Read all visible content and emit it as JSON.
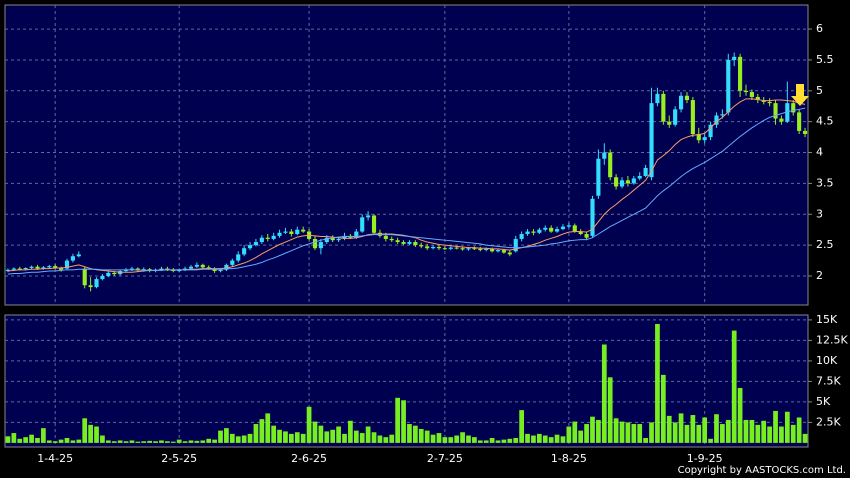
{
  "chart_data": [
    {
      "type": "candlestick",
      "up_color": "#33ddff",
      "down_color": "#99ee22",
      "grid": true,
      "ylim": [
        1.53,
        6.39
      ],
      "yticks": [
        2,
        2.5,
        3,
        3.5,
        4,
        4.5,
        5,
        5.5,
        6
      ],
      "open": [
        2.08,
        2.1,
        2.12,
        2.11,
        2.13,
        2.15,
        2.12,
        2.14,
        2.16,
        2.13,
        2.12,
        2.25,
        2.32,
        2.12,
        1.85,
        1.82,
        1.95,
        2.0,
        2.05,
        2.03,
        2.08,
        2.1,
        2.12,
        2.09,
        2.11,
        2.08,
        2.1,
        2.12,
        2.1,
        2.08,
        2.1,
        2.12,
        2.15,
        2.18,
        2.14,
        2.12,
        2.08,
        2.1,
        2.18,
        2.25,
        2.35,
        2.45,
        2.5,
        2.55,
        2.62,
        2.6,
        2.65,
        2.7,
        2.72,
        2.68,
        2.75,
        2.72,
        2.6,
        2.45,
        2.55,
        2.62,
        2.58,
        2.6,
        2.65,
        2.62,
        2.72,
        2.95,
        2.98,
        2.7,
        2.65,
        2.6,
        2.58,
        2.55,
        2.52,
        2.55,
        2.5,
        2.48,
        2.45,
        2.47,
        2.45,
        2.44,
        2.46,
        2.45,
        2.43,
        2.45,
        2.44,
        2.42,
        2.44,
        2.4,
        2.42,
        2.38,
        2.4,
        2.6,
        2.68,
        2.72,
        2.7,
        2.75,
        2.78,
        2.72,
        2.76,
        2.8,
        2.82,
        2.72,
        2.68,
        2.65,
        3.3,
        3.9,
        4.0,
        3.6,
        3.45,
        3.55,
        3.5,
        3.58,
        3.62,
        3.6,
        4.8,
        4.95,
        4.5,
        4.45,
        4.7,
        4.92,
        4.85,
        4.3,
        4.2,
        4.25,
        4.45,
        4.6,
        4.65,
        5.5,
        5.55,
        5.0,
        4.98,
        4.9,
        4.85,
        4.82,
        4.8,
        4.55,
        4.5,
        4.8,
        4.65,
        4.35
      ],
      "high": [
        2.12,
        2.14,
        2.15,
        2.14,
        2.17,
        2.18,
        2.16,
        2.18,
        2.19,
        2.15,
        2.28,
        2.36,
        2.4,
        2.14,
        1.98,
        1.98,
        2.03,
        2.08,
        2.08,
        2.1,
        2.13,
        2.15,
        2.14,
        2.14,
        2.13,
        2.12,
        2.15,
        2.15,
        2.13,
        2.12,
        2.15,
        2.18,
        2.22,
        2.2,
        2.17,
        2.14,
        2.12,
        2.2,
        2.28,
        2.4,
        2.5,
        2.55,
        2.6,
        2.66,
        2.68,
        2.7,
        2.75,
        2.78,
        2.76,
        2.8,
        2.8,
        2.76,
        2.65,
        2.6,
        2.66,
        2.66,
        2.64,
        2.7,
        2.68,
        2.76,
        3.0,
        3.05,
        3.0,
        2.75,
        2.7,
        2.64,
        2.62,
        2.58,
        2.58,
        2.58,
        2.54,
        2.52,
        2.5,
        2.5,
        2.48,
        2.48,
        2.49,
        2.48,
        2.47,
        2.48,
        2.47,
        2.46,
        2.46,
        2.44,
        2.44,
        2.42,
        2.65,
        2.72,
        2.76,
        2.76,
        2.78,
        2.82,
        2.82,
        2.8,
        2.84,
        2.86,
        2.85,
        2.76,
        2.72,
        3.3,
        4.05,
        4.15,
        4.05,
        3.65,
        3.6,
        3.62,
        3.62,
        3.68,
        3.8,
        5.05,
        5.05,
        5.0,
        4.6,
        4.75,
        4.98,
        4.98,
        4.9,
        4.4,
        4.3,
        4.5,
        4.65,
        4.7,
        5.6,
        5.62,
        5.6,
        5.1,
        5.02,
        4.95,
        4.9,
        4.88,
        4.85,
        4.6,
        5.15,
        4.85,
        4.7,
        4.4
      ],
      "low": [
        2.06,
        2.08,
        2.09,
        2.09,
        2.11,
        2.1,
        2.1,
        2.12,
        2.11,
        2.07,
        2.1,
        2.22,
        2.3,
        1.8,
        1.75,
        1.8,
        1.93,
        1.98,
        2.0,
        2.01,
        2.06,
        2.08,
        2.07,
        2.07,
        2.06,
        2.06,
        2.08,
        2.08,
        2.06,
        2.06,
        2.08,
        2.1,
        2.13,
        2.12,
        2.1,
        2.05,
        2.06,
        2.08,
        2.15,
        2.22,
        2.32,
        2.42,
        2.48,
        2.52,
        2.56,
        2.58,
        2.62,
        2.68,
        2.64,
        2.66,
        2.7,
        2.58,
        2.42,
        2.35,
        2.52,
        2.55,
        2.55,
        2.58,
        2.6,
        2.6,
        2.7,
        2.9,
        2.68,
        2.62,
        2.56,
        2.55,
        2.52,
        2.5,
        2.5,
        2.47,
        2.45,
        2.42,
        2.43,
        2.42,
        2.42,
        2.42,
        2.43,
        2.41,
        2.41,
        2.42,
        2.4,
        2.4,
        2.38,
        2.38,
        2.36,
        2.32,
        2.38,
        2.56,
        2.65,
        2.66,
        2.68,
        2.72,
        2.7,
        2.7,
        2.74,
        2.78,
        2.7,
        2.66,
        2.58,
        2.62,
        3.25,
        3.8,
        3.55,
        3.4,
        3.42,
        3.45,
        3.48,
        3.55,
        3.6,
        3.55,
        4.75,
        4.45,
        4.4,
        4.42,
        4.65,
        4.8,
        4.25,
        4.15,
        4.15,
        4.2,
        4.4,
        4.55,
        4.6,
        5.4,
        4.9,
        4.92,
        4.85,
        4.8,
        4.78,
        4.75,
        4.45,
        4.45,
        4.48,
        4.6,
        4.3,
        4.25
      ],
      "close": [
        2.1,
        2.12,
        2.11,
        2.13,
        2.15,
        2.12,
        2.14,
        2.16,
        2.13,
        2.1,
        2.25,
        2.32,
        2.35,
        1.85,
        1.82,
        1.95,
        2.0,
        2.05,
        2.03,
        2.08,
        2.1,
        2.12,
        2.09,
        2.11,
        2.08,
        2.1,
        2.12,
        2.1,
        2.08,
        2.1,
        2.12,
        2.15,
        2.18,
        2.14,
        2.12,
        2.08,
        2.1,
        2.18,
        2.25,
        2.35,
        2.45,
        2.5,
        2.55,
        2.62,
        2.6,
        2.65,
        2.7,
        2.72,
        2.68,
        2.75,
        2.72,
        2.6,
        2.45,
        2.55,
        2.62,
        2.58,
        2.6,
        2.65,
        2.62,
        2.72,
        2.95,
        2.98,
        2.7,
        2.65,
        2.6,
        2.58,
        2.55,
        2.52,
        2.55,
        2.5,
        2.48,
        2.45,
        2.47,
        2.45,
        2.44,
        2.46,
        2.45,
        2.43,
        2.45,
        2.44,
        2.42,
        2.44,
        2.4,
        2.42,
        2.38,
        2.35,
        2.6,
        2.68,
        2.72,
        2.7,
        2.75,
        2.78,
        2.72,
        2.76,
        2.8,
        2.82,
        2.72,
        2.68,
        2.62,
        3.25,
        3.9,
        4.0,
        3.6,
        3.45,
        3.55,
        3.5,
        3.58,
        3.62,
        3.75,
        4.8,
        4.95,
        4.5,
        4.45,
        4.7,
        4.92,
        4.85,
        4.3,
        4.2,
        4.25,
        4.45,
        4.6,
        4.62,
        5.5,
        5.55,
        5.0,
        4.98,
        4.9,
        4.85,
        4.82,
        4.8,
        4.55,
        4.5,
        4.8,
        4.65,
        4.35,
        4.3
      ],
      "series": [
        {
          "color": "#ff9966",
          "values": [
            2.08,
            2.09,
            2.1,
            2.1,
            2.11,
            2.11,
            2.12,
            2.12,
            2.13,
            2.13,
            2.14,
            2.16,
            2.18,
            2.15,
            2.12,
            2.1,
            2.09,
            2.08,
            2.07,
            2.06,
            2.06,
            2.06,
            2.07,
            2.08,
            2.09,
            2.09,
            2.1,
            2.1,
            2.1,
            2.1,
            2.1,
            2.11,
            2.11,
            2.12,
            2.12,
            2.12,
            2.12,
            2.13,
            2.15,
            2.18,
            2.21,
            2.25,
            2.3,
            2.36,
            2.41,
            2.46,
            2.51,
            2.55,
            2.59,
            2.63,
            2.65,
            2.66,
            2.65,
            2.64,
            2.64,
            2.63,
            2.62,
            2.61,
            2.61,
            2.62,
            2.64,
            2.67,
            2.68,
            2.68,
            2.68,
            2.68,
            2.67,
            2.66,
            2.64,
            2.62,
            2.58,
            2.55,
            2.53,
            2.51,
            2.5,
            2.49,
            2.48,
            2.47,
            2.46,
            2.46,
            2.45,
            2.45,
            2.44,
            2.44,
            2.43,
            2.42,
            2.44,
            2.46,
            2.48,
            2.51,
            2.54,
            2.58,
            2.61,
            2.64,
            2.68,
            2.71,
            2.72,
            2.72,
            2.71,
            2.76,
            2.88,
            3.0,
            3.09,
            3.16,
            3.24,
            3.31,
            3.39,
            3.47,
            3.55,
            3.7,
            3.88,
            3.95,
            4.03,
            4.13,
            4.21,
            4.25,
            4.28,
            4.29,
            4.31,
            4.4,
            4.5,
            4.57,
            4.66,
            4.75,
            4.82,
            4.87,
            4.87,
            4.86,
            4.84,
            4.84,
            4.85,
            4.85,
            4.84,
            4.83,
            4.8,
            4.78
          ]
        },
        {
          "color": "#66aaff",
          "values": [
            2.03,
            2.04,
            2.04,
            2.05,
            2.06,
            2.06,
            2.07,
            2.08,
            2.08,
            2.09,
            2.1,
            2.1,
            2.11,
            2.11,
            2.11,
            2.11,
            2.1,
            2.1,
            2.1,
            2.1,
            2.1,
            2.1,
            2.1,
            2.09,
            2.09,
            2.09,
            2.09,
            2.1,
            2.1,
            2.1,
            2.1,
            2.1,
            2.1,
            2.11,
            2.11,
            2.11,
            2.11,
            2.12,
            2.12,
            2.13,
            2.15,
            2.17,
            2.19,
            2.22,
            2.26,
            2.29,
            2.33,
            2.37,
            2.41,
            2.45,
            2.49,
            2.52,
            2.55,
            2.58,
            2.6,
            2.62,
            2.63,
            2.64,
            2.64,
            2.64,
            2.65,
            2.66,
            2.67,
            2.67,
            2.67,
            2.67,
            2.66,
            2.65,
            2.64,
            2.63,
            2.62,
            2.61,
            2.6,
            2.59,
            2.58,
            2.57,
            2.56,
            2.55,
            2.54,
            2.53,
            2.52,
            2.5,
            2.49,
            2.48,
            2.47,
            2.46,
            2.46,
            2.46,
            2.47,
            2.48,
            2.49,
            2.5,
            2.52,
            2.53,
            2.55,
            2.57,
            2.58,
            2.59,
            2.59,
            2.62,
            2.68,
            2.74,
            2.8,
            2.85,
            2.9,
            2.95,
            3.0,
            3.05,
            3.1,
            3.2,
            3.3,
            3.38,
            3.45,
            3.53,
            3.61,
            3.68,
            3.74,
            3.79,
            3.84,
            3.9,
            3.96,
            4.02,
            4.1,
            4.18,
            4.26,
            4.33,
            4.4,
            4.46,
            4.52,
            4.57,
            4.6,
            4.63,
            4.66,
            4.68,
            4.7,
            4.72
          ]
        }
      ]
    },
    {
      "type": "bar",
      "color": "#77ee22",
      "grid": true,
      "ylim": [
        -500,
        15600
      ],
      "yticks": [
        {
          "value": 2500,
          "label": "2.5K"
        },
        {
          "value": 5000,
          "label": "5K"
        },
        {
          "value": 7500,
          "label": "7.5K"
        },
        {
          "value": 10000,
          "label": "10K"
        },
        {
          "value": 12500,
          "label": "12.5K"
        },
        {
          "value": 15000,
          "label": "15K"
        }
      ],
      "categories": [
        null,
        null,
        null,
        null,
        null,
        null,
        null,
        null,
        "1-4-25",
        null,
        null,
        null,
        null,
        null,
        null,
        null,
        null,
        null,
        null,
        null,
        null,
        null,
        null,
        null,
        null,
        null,
        null,
        null,
        null,
        "2-5-25",
        null,
        null,
        null,
        null,
        null,
        null,
        null,
        null,
        null,
        null,
        null,
        null,
        null,
        null,
        null,
        null,
        null,
        null,
        null,
        null,
        null,
        "2-6-25",
        null,
        null,
        null,
        null,
        null,
        null,
        null,
        null,
        null,
        null,
        null,
        null,
        null,
        null,
        null,
        null,
        null,
        null,
        null,
        null,
        null,
        null,
        "2-7-25",
        null,
        null,
        null,
        null,
        null,
        null,
        null,
        null,
        null,
        null,
        null,
        null,
        null,
        null,
        null,
        null,
        null,
        null,
        null,
        null,
        "1-8-25",
        null,
        null,
        null,
        null,
        null,
        null,
        null,
        null,
        null,
        null,
        null,
        null,
        null,
        null,
        null,
        null,
        null,
        null,
        null,
        null,
        null,
        null,
        "1-9-25",
        null,
        null,
        null,
        null,
        null,
        null,
        null,
        null,
        null,
        null,
        null,
        null,
        null,
        null,
        null,
        null,
        null
      ],
      "values": [
        800,
        1200,
        500,
        700,
        1000,
        600,
        1800,
        300,
        200,
        400,
        600,
        300,
        400,
        3000,
        2200,
        2000,
        900,
        300,
        200,
        300,
        200,
        300,
        150,
        200,
        250,
        200,
        300,
        200,
        150,
        400,
        200,
        300,
        250,
        300,
        500,
        400,
        1500,
        1800,
        1100,
        800,
        900,
        1100,
        2300,
        2900,
        3600,
        2100,
        1600,
        1400,
        1100,
        1300,
        1100,
        4400,
        2600,
        2100,
        1400,
        1600,
        2000,
        1100,
        2700,
        1500,
        1200,
        2000,
        1300,
        900,
        700,
        1000,
        5500,
        5200,
        2300,
        2100,
        1700,
        1500,
        1000,
        1200,
        700,
        700,
        900,
        1300,
        900,
        700,
        300,
        300,
        600,
        300,
        400,
        500,
        600,
        4000,
        1100,
        900,
        1100,
        900,
        700,
        1000,
        800,
        2000,
        2600,
        1500,
        2300,
        3200,
        2800,
        12000,
        8000,
        3000,
        2600,
        2500,
        2300,
        2300,
        600,
        2500,
        14500,
        8300,
        3300,
        2500,
        3600,
        2200,
        3400,
        2200,
        3100,
        500,
        3500,
        2300,
        2800,
        13700,
        6700,
        2800,
        2800,
        2200,
        2700,
        2000,
        3900,
        2000,
        3800,
        2200,
        3100,
        1100
      ],
      "annotation": "Copyright by AASTOCKS.com Ltd."
    }
  ]
}
